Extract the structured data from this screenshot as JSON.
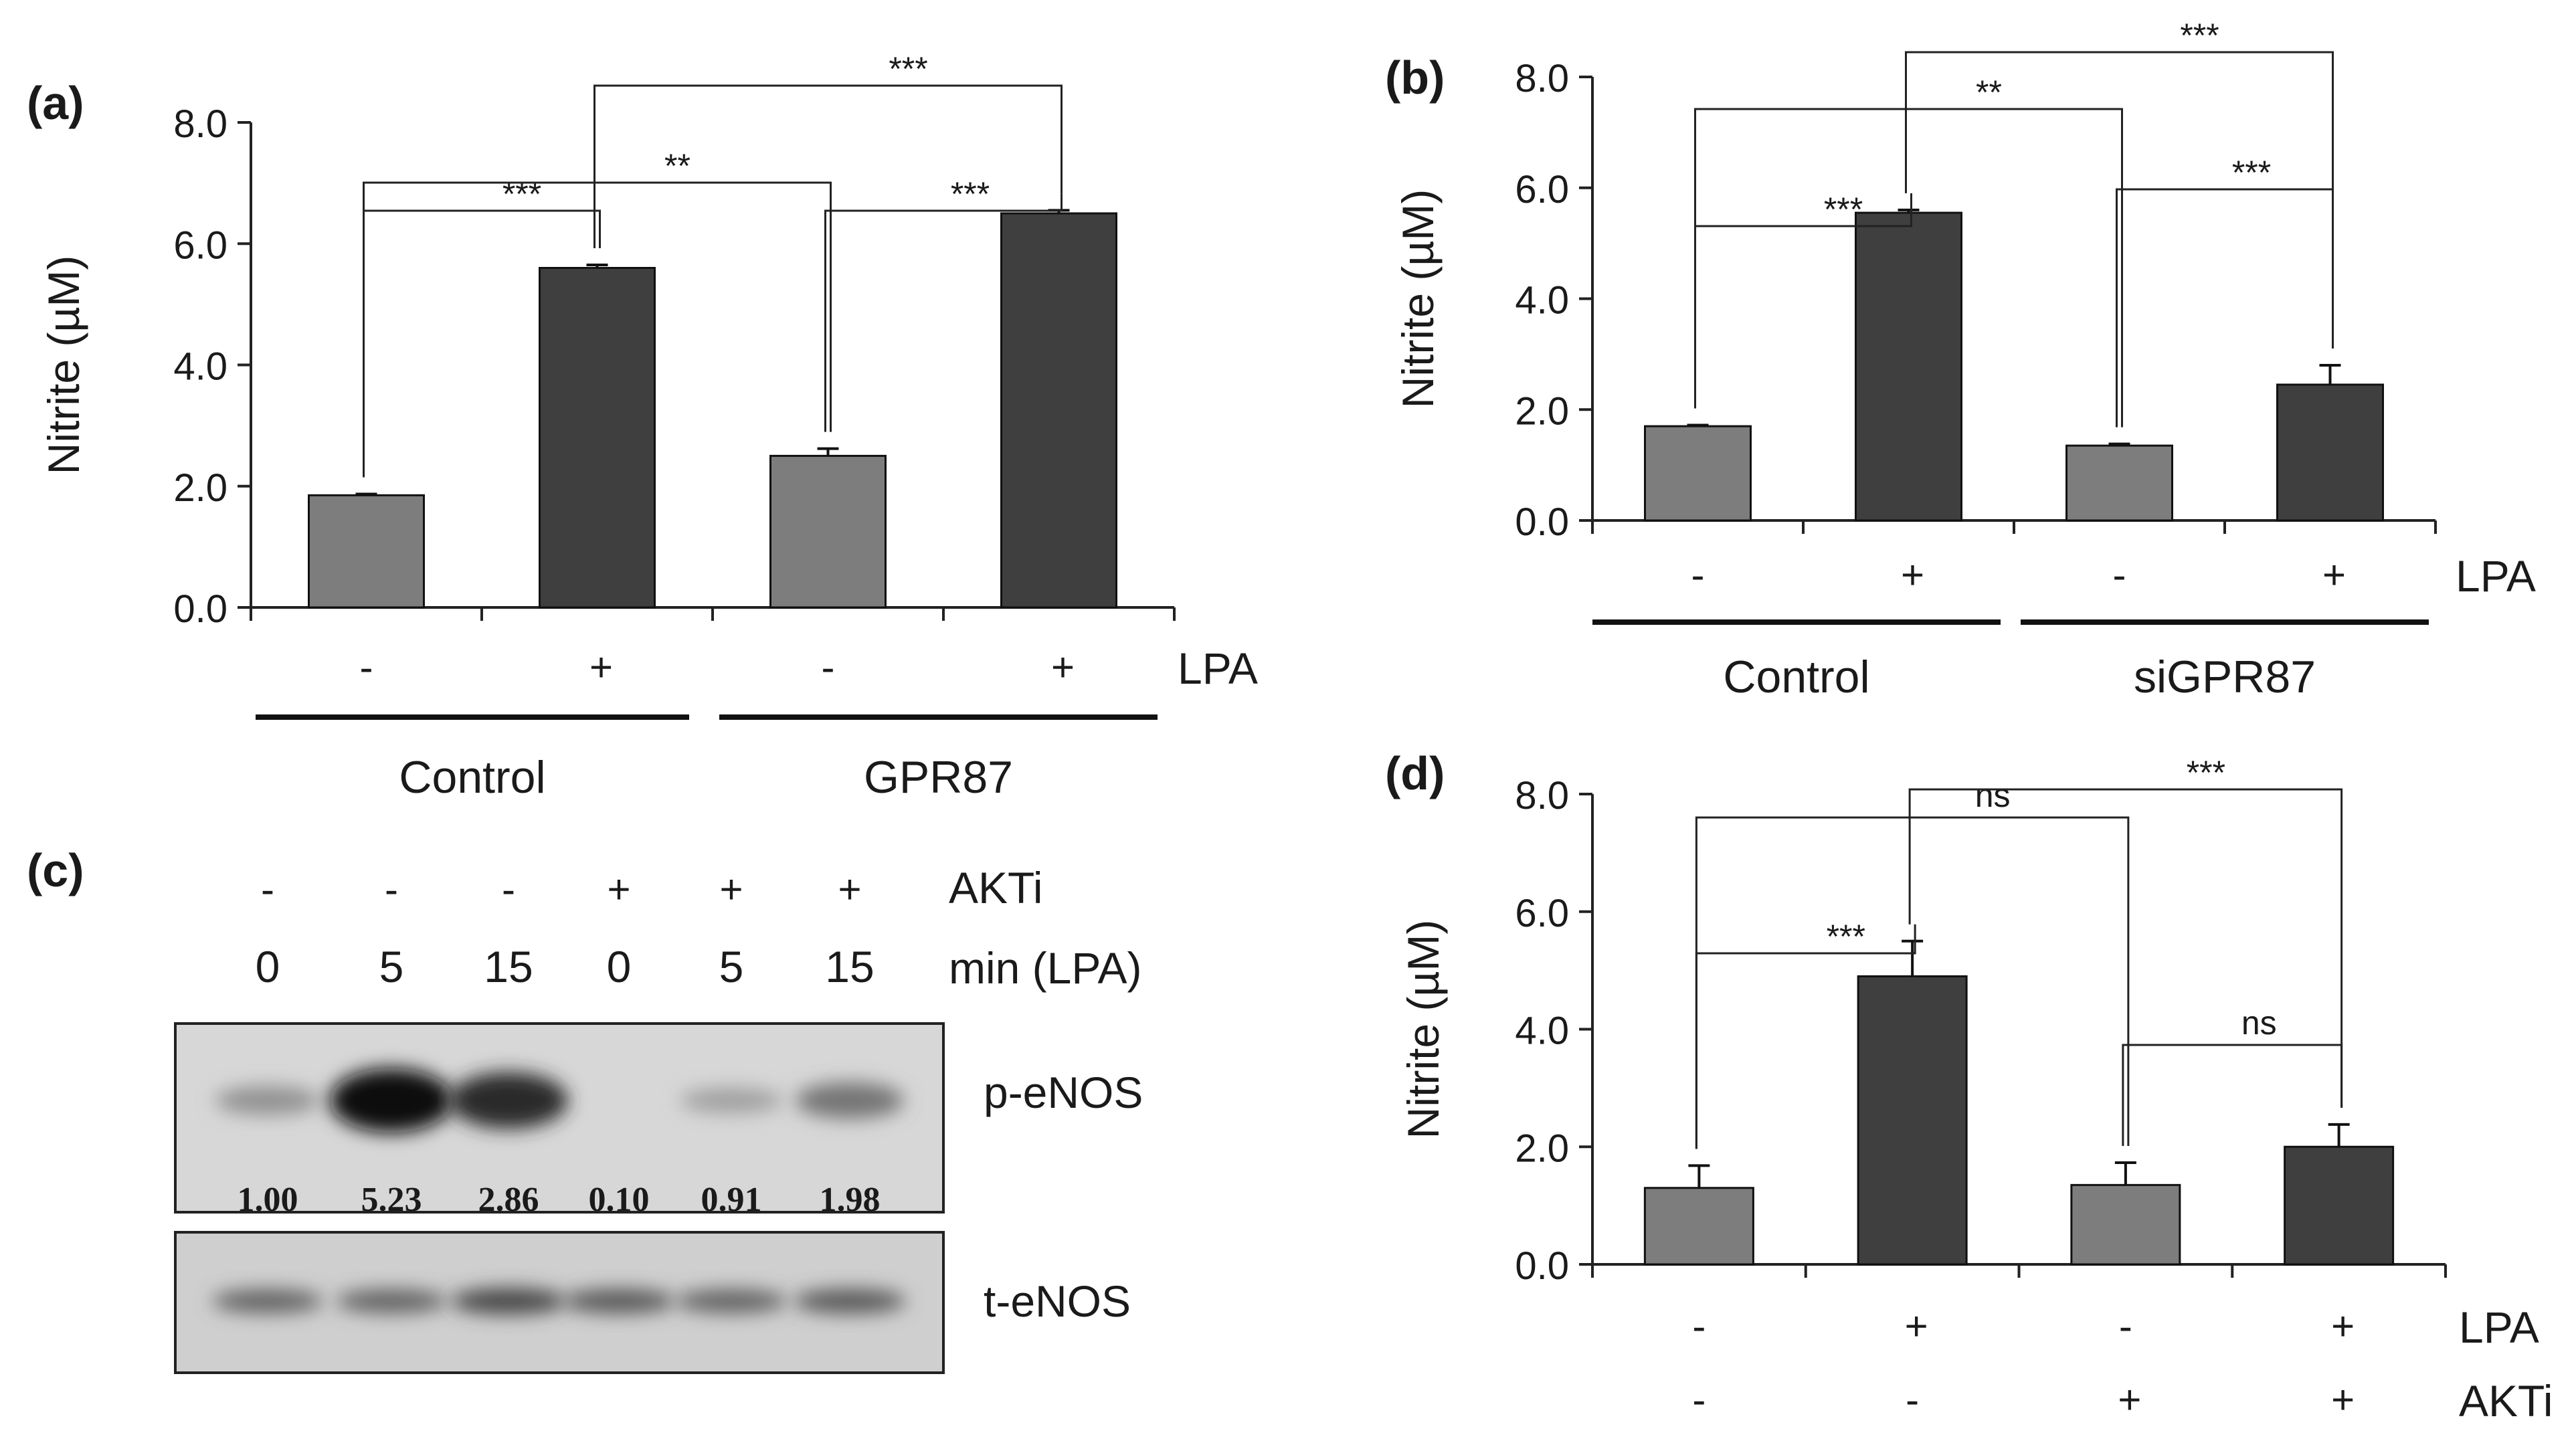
{
  "colors": {
    "light_bar": "#7d7d7d",
    "dark_bar": "#3f3f3f",
    "text": "#1a1a1a",
    "blot_bg": "#d7d7d7"
  },
  "chart_data": [
    {
      "panel": "a",
      "panel_label": "(a)",
      "type": "bar",
      "ylabel": "Nitrite (µM)",
      "ylim": [
        0,
        8
      ],
      "yticks": [
        "0.0",
        "2.0",
        "4.0",
        "6.0",
        "8.0"
      ],
      "values": [
        1.85,
        5.6,
        2.5,
        6.5
      ],
      "errors": [
        0.02,
        0.05,
        0.12,
        0.05
      ],
      "bar_shades": [
        "light",
        "dark",
        "light",
        "dark"
      ],
      "treatment_rows": [
        {
          "label": "LPA",
          "signs": [
            "-",
            "+",
            "-",
            "+"
          ]
        }
      ],
      "groups": [
        "Control",
        "GPR87"
      ],
      "significance": [
        {
          "from": 0,
          "to": 1,
          "label": "***"
        },
        {
          "from": 2,
          "to": 3,
          "label": "***"
        },
        {
          "from": 0,
          "to": 2,
          "label": "**"
        },
        {
          "from": 1,
          "to": 3,
          "label": "***"
        }
      ]
    },
    {
      "panel": "b",
      "panel_label": "(b)",
      "type": "bar",
      "ylabel": "Nitrite (µM)",
      "ylim": [
        0,
        8
      ],
      "yticks": [
        "0.0",
        "2.0",
        "4.0",
        "6.0",
        "8.0"
      ],
      "values": [
        1.7,
        5.55,
        1.35,
        2.45
      ],
      "errors": [
        0.02,
        0.05,
        0.03,
        0.35
      ],
      "bar_shades": [
        "light",
        "dark",
        "light",
        "dark"
      ],
      "treatment_rows": [
        {
          "label": "LPA",
          "signs": [
            "-",
            "+",
            "-",
            "+"
          ]
        }
      ],
      "groups": [
        "Control",
        "siGPR87"
      ],
      "significance": [
        {
          "from": 0,
          "to": 1,
          "label": "***"
        },
        {
          "from": 2,
          "to": 3,
          "label": "***"
        },
        {
          "from": 0,
          "to": 2,
          "label": "**"
        },
        {
          "from": 1,
          "to": 3,
          "label": "***"
        }
      ]
    },
    {
      "panel": "d",
      "panel_label": "(d)",
      "type": "bar",
      "ylabel": "Nitrite (µM)",
      "ylim": [
        0,
        8
      ],
      "yticks": [
        "0.0",
        "2.0",
        "4.0",
        "6.0",
        "8.0"
      ],
      "values": [
        1.3,
        4.9,
        1.35,
        2.0
      ],
      "errors": [
        0.38,
        0.6,
        0.38,
        0.38
      ],
      "bar_shades": [
        "light",
        "dark",
        "light",
        "dark"
      ],
      "treatment_rows": [
        {
          "label": "LPA",
          "signs": [
            "-",
            "+",
            "-",
            "+"
          ]
        },
        {
          "label": "AKTi",
          "signs": [
            "-",
            "-",
            "+",
            "+"
          ]
        }
      ],
      "groups": [],
      "significance": [
        {
          "from": 0,
          "to": 1,
          "label": "***"
        },
        {
          "from": 2,
          "to": 3,
          "label": "ns"
        },
        {
          "from": 0,
          "to": 2,
          "label": "ns"
        },
        {
          "from": 1,
          "to": 3,
          "label": "***"
        }
      ]
    }
  ],
  "blot": {
    "panel_label": "(c)",
    "akti_label": "AKTi",
    "akti_signs": [
      "-",
      "-",
      "-",
      "+",
      "+",
      "+"
    ],
    "time_label": "min (LPA)",
    "times": [
      "0",
      "5",
      "15",
      "0",
      "5",
      "15"
    ],
    "rows": [
      {
        "label": "p-eNOS",
        "intensities": [
          0.3,
          1.0,
          0.85,
          0.0,
          0.22,
          0.45
        ]
      },
      {
        "label": "t-eNOS",
        "intensities": [
          0.55,
          0.55,
          0.7,
          0.6,
          0.55,
          0.6
        ]
      }
    ],
    "quantification": [
      "1.00",
      "5.23",
      "2.86",
      "0.10",
      "0.91",
      "1.98"
    ]
  }
}
